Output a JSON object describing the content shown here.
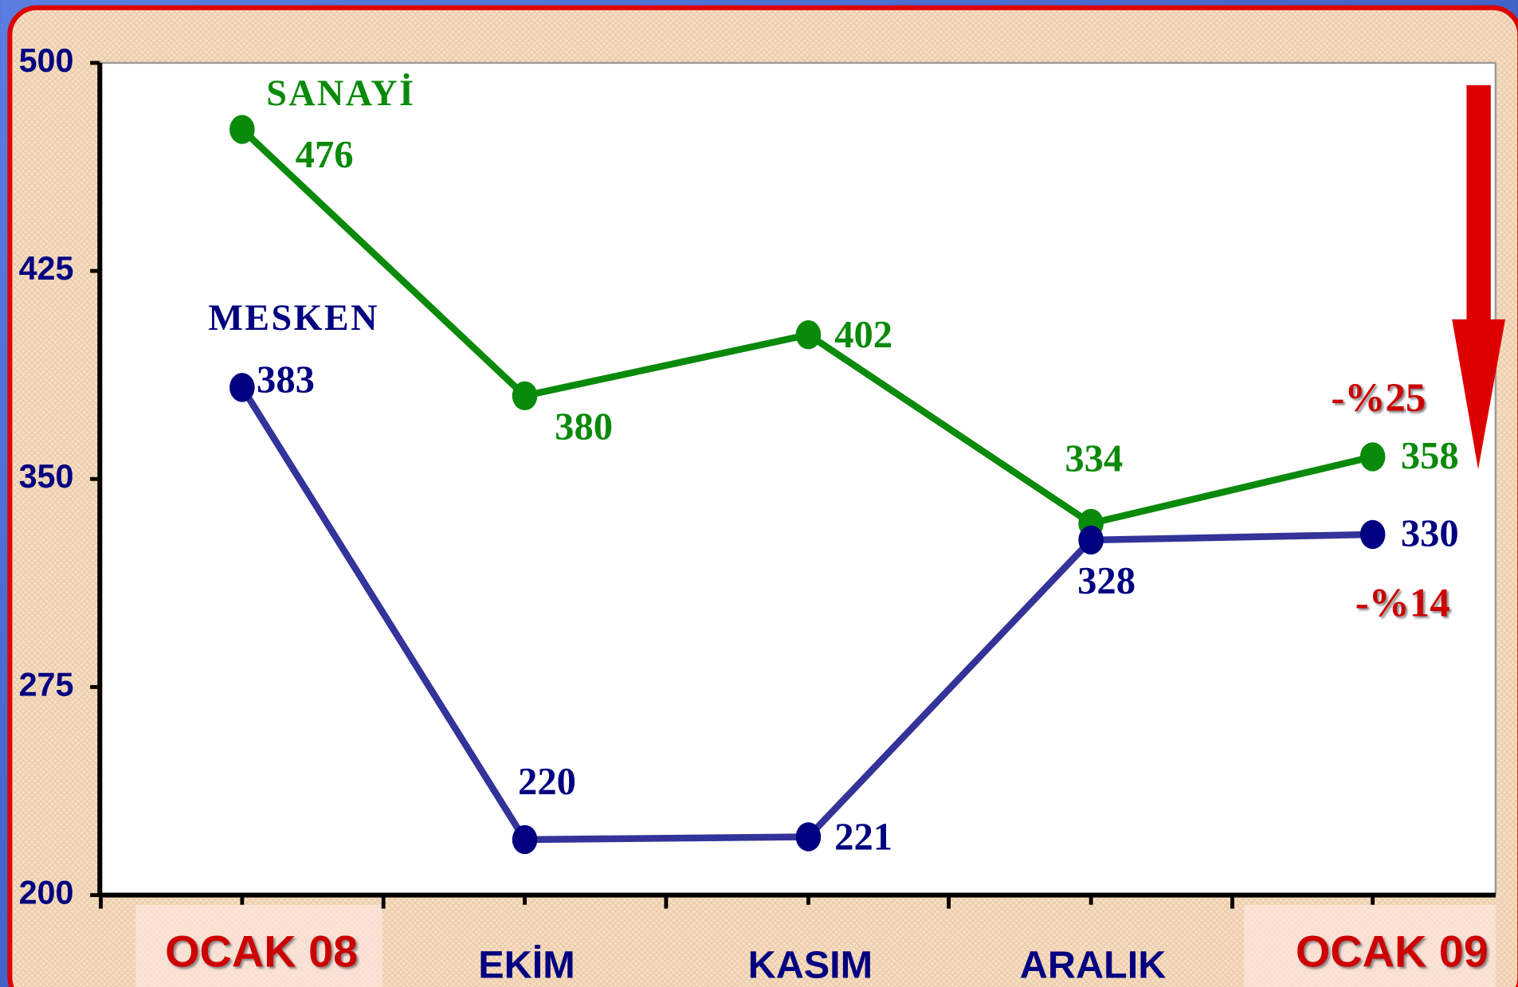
{
  "chart_data": {
    "type": "line",
    "categories": [
      "OCAK 08",
      "EKİM",
      "KASIM",
      "ARALIK",
      "OCAK 09"
    ],
    "category_colors": [
      "#cc0000",
      "#000080",
      "#000080",
      "#000080",
      "#cc0000"
    ],
    "series": [
      {
        "name": "SANAYİ",
        "color": "#0a8a0a",
        "marker_color": "#0a8a0a",
        "values": [
          476,
          380,
          402,
          334,
          358
        ]
      },
      {
        "name": "MESKEN",
        "color": "#333399",
        "marker_color": "#000080",
        "values": [
          383,
          220,
          221,
          328,
          330
        ]
      }
    ],
    "ylim": [
      200,
      500
    ],
    "yticks": [
      200,
      275,
      350,
      425,
      500
    ],
    "annotations": [
      {
        "text": "-%25",
        "color": "#cc0000"
      },
      {
        "text": "-%14",
        "color": "#cc0000"
      }
    ]
  }
}
